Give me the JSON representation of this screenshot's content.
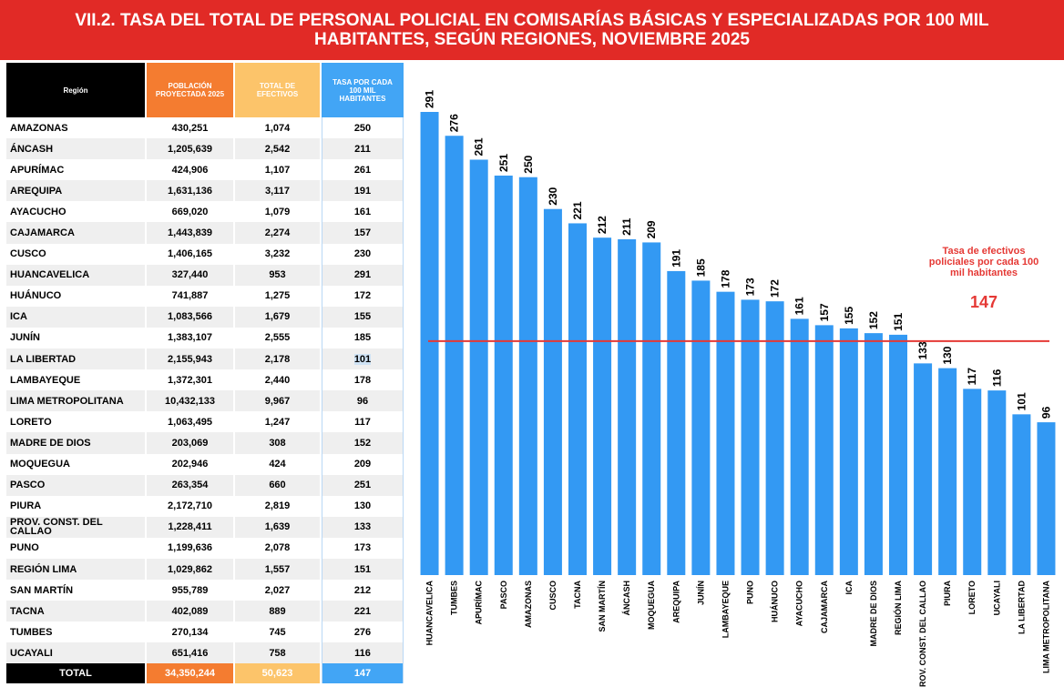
{
  "header": {
    "title": [
      "VII.2. TASA DEL TOTAL DE PERSONAL POLICIAL EN COMISARÍAS BÁSICAS Y ESPECIALIZADAS POR 100 MIL",
      "HABITANTES, SEGÚN REGIONES, NOVIEMBRE 2025"
    ]
  },
  "table": {
    "columns": [
      [
        "Región"
      ],
      [
        "POBLACIÓN",
        "PROYECTADA 2025"
      ],
      [
        "TOTAL DE",
        "EFECTIVOS"
      ],
      [
        "TASA POR CADA",
        "100 MIL",
        "HABITANTES"
      ]
    ],
    "rows": [
      [
        "AMAZONAS",
        "430,251",
        "1,074",
        "250"
      ],
      [
        "ÁNCASH",
        "1,205,639",
        "2,542",
        "211"
      ],
      [
        "APURÍMAC",
        "424,906",
        "1,107",
        "261"
      ],
      [
        "AREQUIPA",
        "1,631,136",
        "3,117",
        "191"
      ],
      [
        "AYACUCHO",
        "669,020",
        "1,079",
        "161"
      ],
      [
        "CAJAMARCA",
        "1,443,839",
        "2,274",
        "157"
      ],
      [
        "CUSCO",
        "1,406,165",
        "3,232",
        "230"
      ],
      [
        "HUANCAVELICA",
        "327,440",
        "953",
        "291"
      ],
      [
        "HUÁNUCO",
        "741,887",
        "1,275",
        "172"
      ],
      [
        "ICA",
        "1,083,566",
        "1,679",
        "155"
      ],
      [
        "JUNÍN",
        "1,383,107",
        "2,555",
        "185"
      ],
      [
        "LA LIBERTAD",
        "2,155,943",
        "2,178",
        "101"
      ],
      [
        "LAMBAYEQUE",
        "1,372,301",
        "2,440",
        "178"
      ],
      [
        "LIMA METROPOLITANA",
        "10,432,133",
        "9,967",
        "96"
      ],
      [
        "LORETO",
        "1,063,495",
        "1,247",
        "117"
      ],
      [
        "MADRE DE DIOS",
        "203,069",
        "308",
        "152"
      ],
      [
        "MOQUEGUA",
        "202,946",
        "424",
        "209"
      ],
      [
        "PASCO",
        "263,354",
        "660",
        "251"
      ],
      [
        "PIURA",
        "2,172,710",
        "2,819",
        "130"
      ],
      [
        "PROV. CONST. DEL CALLAO",
        "1,228,411",
        "1,639",
        "133"
      ],
      [
        "PUNO",
        "1,199,636",
        "2,078",
        "173"
      ],
      [
        "REGIÓN LIMA",
        "1,029,862",
        "1,557",
        "151"
      ],
      [
        "SAN MARTÍN",
        "955,789",
        "2,027",
        "212"
      ],
      [
        "TACNA",
        "402,089",
        "889",
        "221"
      ],
      [
        "TUMBES",
        "270,134",
        "745",
        "276"
      ],
      [
        "UCAYALI",
        "651,416",
        "758",
        "116"
      ]
    ],
    "total": [
      "TOTAL",
      "34,350,244",
      "50,623",
      "147"
    ]
  },
  "chart_data": {
    "type": "bar",
    "color": "#3399f3",
    "categories": [
      "HUANCAVELICA",
      "TUMBES",
      "APURÍMAC",
      "PASCO",
      "AMAZONAS",
      "CUSCO",
      "TACNA",
      "SAN MARTÍN",
      "ÁNCASH",
      "MOQUEGUA",
      "AREQUIPA",
      "JUNÍN",
      "LAMBAYEQUE",
      "PUNO",
      "HUÁNUCO",
      "AYACUCHO",
      "CAJAMARCA",
      "ICA",
      "MADRE DE DIOS",
      "REGIÓN LIMA",
      "PROV. CONST. DEL CALLAO",
      "PIURA",
      "LORETO",
      "UCAYALI",
      "LA LIBERTAD",
      "LIMA METROPOLITANA"
    ],
    "values": [
      291,
      276,
      261,
      251,
      250,
      230,
      221,
      212,
      211,
      209,
      191,
      185,
      178,
      173,
      172,
      161,
      157,
      155,
      152,
      151,
      133,
      130,
      117,
      116,
      101,
      96
    ],
    "reference_line": {
      "value": 147,
      "color": "#e53935",
      "annotation": [
        "Tasa de efectivos",
        "policiales por cada 100",
        "mil habitantes"
      ]
    }
  }
}
